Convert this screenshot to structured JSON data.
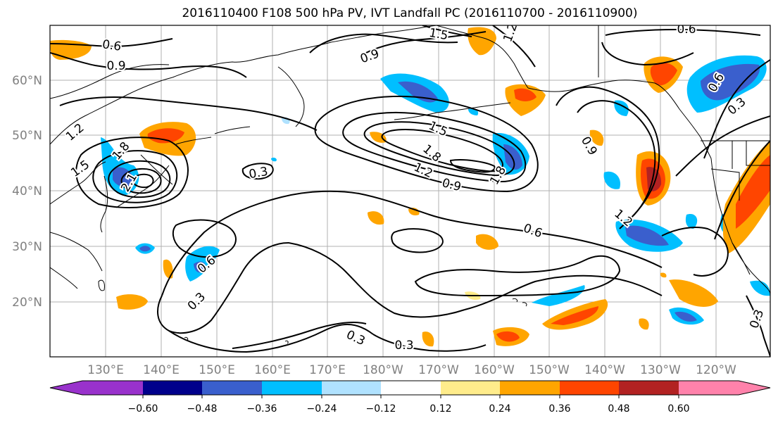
{
  "title": "2016110400 F108 500 hPa PV, IVT Landfall PC (2016110700 - 2016110900)",
  "latitude_labels": [
    "60°N",
    "50°N",
    "40°N",
    "30°N",
    "20°N"
  ],
  "longitude_labels": [
    "130°E",
    "140°E",
    "150°E",
    "160°E",
    "170°E",
    "180°W",
    "170°W",
    "160°W",
    "150°W",
    "140°W",
    "130°W",
    "120°W"
  ],
  "colorbar": {
    "tick_labels": [
      "−0.60",
      "−0.48",
      "−0.36",
      "−0.24",
      "−0.12",
      "0.12",
      "0.24",
      "0.36",
      "0.48",
      "0.60"
    ],
    "colors": [
      "#9932cc",
      "#00008b",
      "#3a5fcd",
      "#00bfff",
      "#b0e2ff",
      "#ffffff",
      "#ffec8b",
      "#ffa500",
      "#ff4500",
      "#b22222",
      "#ff82ab"
    ]
  },
  "contour_labels": [
    {
      "text": "0.6"
    },
    {
      "text": "0.9"
    },
    {
      "text": "1.2"
    },
    {
      "text": "1.5"
    },
    {
      "text": "1.8"
    },
    {
      "text": "2.1"
    },
    {
      "text": "0.3"
    },
    {
      "text": "0.9"
    },
    {
      "text": "1.5"
    },
    {
      "text": "1.8"
    },
    {
      "text": "1.2"
    },
    {
      "text": "0.9"
    },
    {
      "text": "1.5"
    },
    {
      "text": "1.8"
    },
    {
      "text": "0.9"
    },
    {
      "text": "0.6"
    },
    {
      "text": "1.2"
    },
    {
      "text": "0.6"
    },
    {
      "text": "0.3"
    },
    {
      "text": "0.6"
    },
    {
      "text": "0.3"
    },
    {
      "text": "0.3"
    },
    {
      "text": "0.3"
    },
    {
      "text": "1.2"
    },
    {
      "text": "0.6"
    },
    {
      "text": "0.3"
    }
  ]
}
